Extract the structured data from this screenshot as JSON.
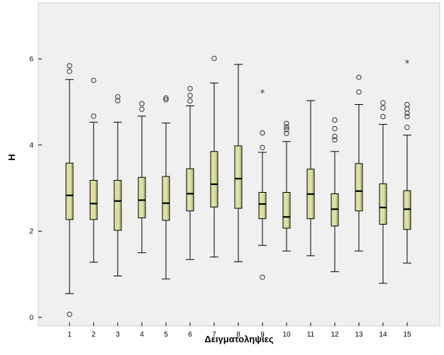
{
  "chart_data": {
    "type": "boxplot",
    "title": "",
    "xlabel": "Δειγματοληψίες",
    "ylabel": "H",
    "ylim": [
      -0.2,
      7.3
    ],
    "yticks": [
      0,
      2,
      4,
      6
    ],
    "grid": false,
    "legend": "none",
    "categories": [
      "1",
      "2",
      "3",
      "4",
      "5",
      "6",
      "7",
      "8",
      "9",
      "10",
      "11",
      "12",
      "13",
      "14",
      "15"
    ],
    "boxes": [
      {
        "min": 0.55,
        "q1": 2.27,
        "median": 2.83,
        "q3": 3.58,
        "max": 5.52
      },
      {
        "min": 1.28,
        "q1": 2.27,
        "median": 2.64,
        "q3": 3.18,
        "max": 4.53
      },
      {
        "min": 0.96,
        "q1": 2.02,
        "median": 2.7,
        "q3": 3.18,
        "max": 4.53
      },
      {
        "min": 1.5,
        "q1": 2.31,
        "median": 2.72,
        "q3": 3.25,
        "max": 4.67
      },
      {
        "min": 0.89,
        "q1": 2.25,
        "median": 2.65,
        "q3": 3.27,
        "max": 4.51
      },
      {
        "min": 1.34,
        "q1": 2.47,
        "median": 2.87,
        "q3": 3.45,
        "max": 4.91
      },
      {
        "min": 1.4,
        "q1": 2.56,
        "median": 3.09,
        "q3": 3.85,
        "max": 5.44
      },
      {
        "min": 1.29,
        "q1": 2.53,
        "median": 3.22,
        "q3": 3.98,
        "max": 5.87
      },
      {
        "min": 1.67,
        "q1": 2.29,
        "median": 2.63,
        "q3": 2.9,
        "max": 3.83
      },
      {
        "min": 1.54,
        "q1": 2.07,
        "median": 2.33,
        "q3": 2.9,
        "max": 4.08
      },
      {
        "min": 1.43,
        "q1": 2.29,
        "median": 2.86,
        "q3": 3.44,
        "max": 5.03
      },
      {
        "min": 1.06,
        "q1": 2.12,
        "median": 2.51,
        "q3": 2.87,
        "max": 3.85
      },
      {
        "min": 1.54,
        "q1": 2.47,
        "median": 2.93,
        "q3": 3.57,
        "max": 4.94
      },
      {
        "min": 0.79,
        "q1": 2.16,
        "median": 2.55,
        "q3": 3.1,
        "max": 4.48
      },
      {
        "min": 1.26,
        "q1": 2.04,
        "median": 2.51,
        "q3": 2.94,
        "max": 4.23
      }
    ],
    "outliers": [
      {
        "category": "1",
        "values": [
          5.84,
          5.71,
          0.07
        ],
        "marker": "circle"
      },
      {
        "category": "2",
        "values": [
          5.5,
          4.67
        ],
        "marker": "circle"
      },
      {
        "category": "3",
        "values": [
          5.12,
          5.03
        ],
        "marker": "circle"
      },
      {
        "category": "4",
        "values": [
          4.96,
          4.83
        ],
        "marker": "circle"
      },
      {
        "category": "5",
        "values": [
          5.09,
          5.05
        ],
        "marker": "circle"
      },
      {
        "category": "6",
        "values": [
          5.31,
          5.15,
          5.02
        ],
        "marker": "circle"
      },
      {
        "category": "7",
        "values": [
          6.01
        ],
        "marker": "circle"
      },
      {
        "category": "9",
        "values": [
          4.28,
          3.94,
          0.93
        ],
        "marker": "circle"
      },
      {
        "category": "9",
        "values": [
          5.21
        ],
        "marker": "star"
      },
      {
        "category": "10",
        "values": [
          4.5,
          4.42,
          4.36,
          4.27
        ],
        "marker": "circle"
      },
      {
        "category": "12",
        "values": [
          4.58,
          4.38,
          4.2,
          4.12
        ],
        "marker": "circle"
      },
      {
        "category": "13",
        "values": [
          5.57,
          5.23
        ],
        "marker": "circle"
      },
      {
        "category": "14",
        "values": [
          4.98,
          4.86,
          4.66
        ],
        "marker": "circle"
      },
      {
        "category": "15",
        "values": [
          4.94,
          4.84,
          4.74,
          4.66,
          4.41
        ],
        "marker": "circle"
      },
      {
        "category": "15",
        "values": [
          5.9
        ],
        "marker": "star"
      }
    ],
    "colors": {
      "plot_background": "#f0f0f0",
      "box_fill": "#dcdfa6",
      "box_shade": "#bfc47a",
      "stroke": "#000000"
    }
  }
}
